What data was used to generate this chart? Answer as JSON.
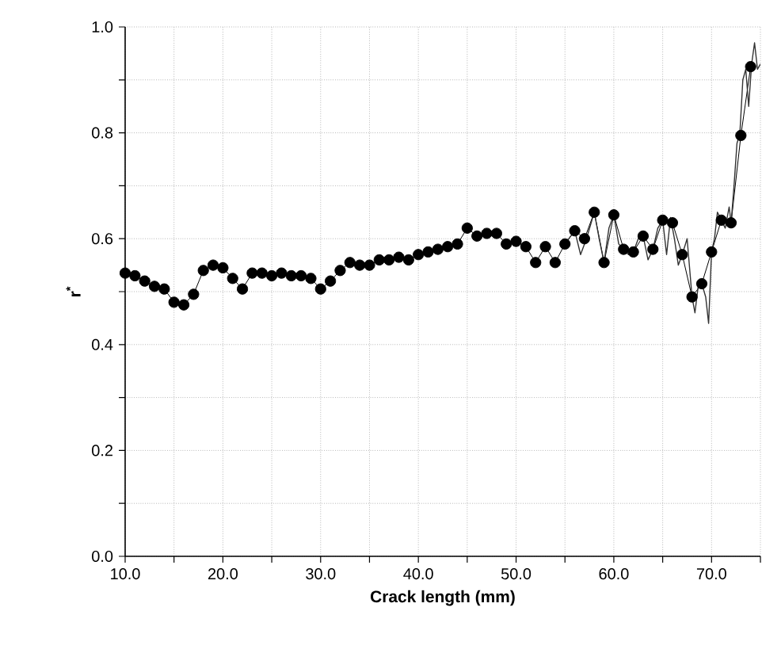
{
  "chart_data": {
    "type": "line",
    "xlabel": "Crack length (mm)",
    "ylabel": "r$^{*}$",
    "xlim": [
      10,
      75
    ],
    "ylim": [
      0,
      1
    ],
    "xticks": [
      {
        "value": 10,
        "label": "10.0"
      },
      {
        "value": 15,
        "label": null
      },
      {
        "value": 20,
        "label": "20.0"
      },
      {
        "value": 25,
        "label": null
      },
      {
        "value": 30,
        "label": "30.0"
      },
      {
        "value": 35,
        "label": null
      },
      {
        "value": 40,
        "label": "40.0"
      },
      {
        "value": 45,
        "label": null
      },
      {
        "value": 50,
        "label": "50.0"
      },
      {
        "value": 55,
        "label": null
      },
      {
        "value": 60,
        "label": "60.0"
      },
      {
        "value": 65,
        "label": null
      },
      {
        "value": 70,
        "label": "70.0"
      },
      {
        "value": 75,
        "label": null
      }
    ],
    "yticks": [
      {
        "value": 0,
        "label": "0.0"
      },
      {
        "value": 0.1,
        "label": null
      },
      {
        "value": 0.2,
        "label": "0.2"
      },
      {
        "value": 0.3,
        "label": null
      },
      {
        "value": 0.4,
        "label": "0.4"
      },
      {
        "value": 0.5,
        "label": null
      },
      {
        "value": 0.6,
        "label": "0.6"
      },
      {
        "value": 0.7,
        "label": null
      },
      {
        "value": 0.8,
        "label": "0.8"
      },
      {
        "value": 0.9,
        "label": null
      },
      {
        "value": 1,
        "label": "1.0"
      }
    ],
    "grid": true,
    "series": [
      {
        "color": "#000000",
        "marker": "circle",
        "x": [
          10,
          11,
          12,
          13,
          14,
          15,
          16,
          17,
          18,
          19,
          20,
          21,
          22,
          23,
          24,
          25,
          26,
          27,
          28,
          29,
          30,
          31,
          32,
          33,
          34,
          35,
          36,
          37,
          38,
          39,
          40,
          41,
          42,
          43,
          44,
          45,
          46,
          47,
          48,
          49,
          50,
          51,
          52,
          53,
          54,
          55,
          56,
          57,
          58,
          59,
          60,
          61,
          62,
          63,
          64,
          65,
          66,
          67,
          68,
          69,
          70,
          71,
          72,
          73,
          74
        ],
        "values": [
          0.535,
          0.53,
          0.52,
          0.51,
          0.505,
          0.48,
          0.475,
          0.495,
          0.54,
          0.55,
          0.545,
          0.525,
          0.505,
          0.535,
          0.535,
          0.53,
          0.535,
          0.53,
          0.53,
          0.525,
          0.505,
          0.52,
          0.54,
          0.555,
          0.55,
          0.55,
          0.56,
          0.56,
          0.565,
          0.56,
          0.57,
          0.575,
          0.58,
          0.585,
          0.59,
          0.62,
          0.605,
          0.61,
          0.61,
          0.59,
          0.595,
          0.585,
          0.555,
          0.585,
          0.555,
          0.59,
          0.615,
          0.6,
          0.65,
          0.555,
          0.645,
          0.58,
          0.575,
          0.605,
          0.58,
          0.635,
          0.63,
          0.57,
          0.49,
          0.515,
          0.575,
          0.635,
          0.63,
          0.795,
          0.925
        ]
      },
      {
        "color": "#333333",
        "marker": "none",
        "x": [
          55,
          56,
          56.6,
          57.2,
          58,
          58.5,
          59,
          59.5,
          60,
          60.5,
          61,
          61.5,
          62,
          62.5,
          63,
          63.5,
          64,
          64.5,
          65,
          65.4,
          65.8,
          66.2,
          66.6,
          67,
          67.5,
          68,
          68.3,
          68.7,
          69,
          69.4,
          69.7,
          70,
          70.3,
          70.6,
          71,
          71.4,
          71.8,
          72,
          72.3,
          72.6,
          72.9,
          73.2,
          73.5,
          73.8,
          74.1,
          74.4,
          74.7,
          75
        ],
        "values": [
          0.59,
          0.615,
          0.57,
          0.6,
          0.65,
          0.6,
          0.555,
          0.62,
          0.645,
          0.59,
          0.58,
          0.57,
          0.575,
          0.6,
          0.605,
          0.56,
          0.58,
          0.62,
          0.635,
          0.57,
          0.64,
          0.6,
          0.55,
          0.57,
          0.6,
          0.49,
          0.46,
          0.52,
          0.515,
          0.49,
          0.44,
          0.575,
          0.6,
          0.65,
          0.635,
          0.62,
          0.66,
          0.63,
          0.7,
          0.78,
          0.8,
          0.9,
          0.92,
          0.85,
          0.93,
          0.97,
          0.92,
          0.93
        ]
      }
    ]
  }
}
